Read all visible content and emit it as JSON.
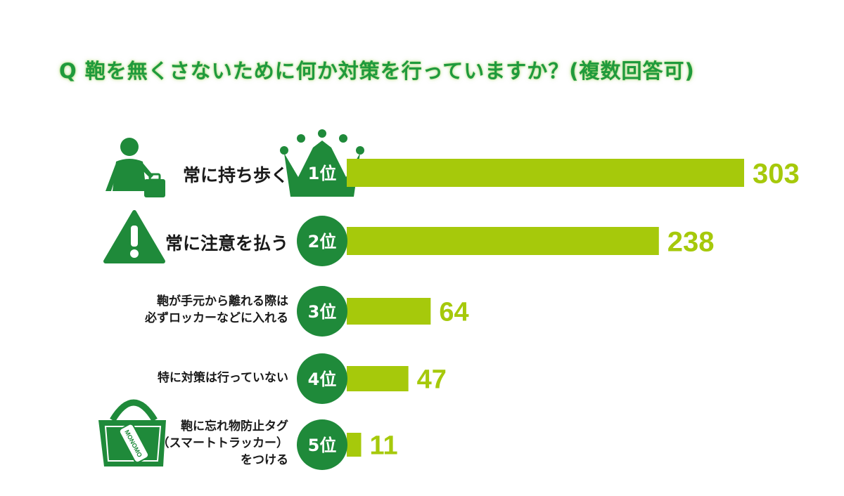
{
  "title": "Q 鞄を無くさないために何か対策を行っていますか？(複数回答可)",
  "colors": {
    "title": "#1f9a3c",
    "bar": "#a6c90b",
    "value": "#a6c90b",
    "badge": "#1f8a3a",
    "icon": "#1f8a3a"
  },
  "icons": {
    "rank1": "person-with-suitcase-icon",
    "rank2": "warning-triangle-icon",
    "rank5": "tote-bag-with-tag-icon",
    "crown": "crown-icon"
  },
  "bag_tag_text": "MONOMO",
  "chart_data": {
    "type": "bar",
    "orientation": "horizontal",
    "title": "Q 鞄を無くさないために何か対策を行っていますか？(複数回答可)",
    "categories": [
      "常に持ち歩く",
      "常に注意を払う",
      "鞄が手元から離れる際は\n必ずロッカーなどに入れる",
      "特に対策は行っていない",
      "鞄に忘れ物防止タグ\n（スマートトラッカー）\nをつける"
    ],
    "ranks": [
      "1位",
      "2位",
      "3位",
      "4位",
      "5位"
    ],
    "values": [
      303,
      238,
      64,
      47,
      11
    ],
    "xlim": [
      0,
      303
    ],
    "grid": false,
    "legend": "none"
  }
}
